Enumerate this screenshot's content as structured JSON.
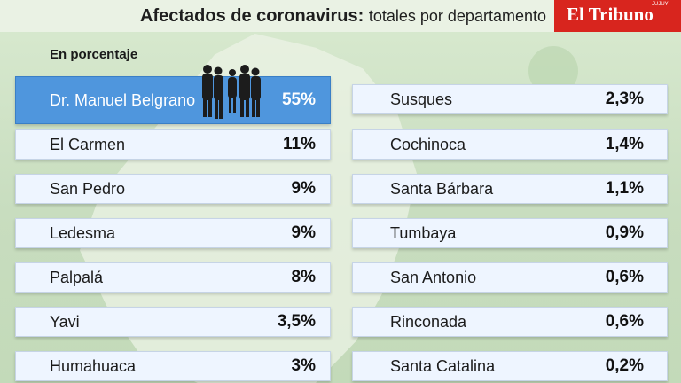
{
  "header": {
    "title_bold": "Afectados de coronavirus:",
    "title_rest": "totales por departamento",
    "logo": "El Tribuno",
    "logo_small": "JUJUY"
  },
  "unit_label": "En porcentaje",
  "colors": {
    "highlight": "#4f96dd",
    "row_bg": "#eef5ff",
    "logo_red": "#d8251e",
    "background": "#cfe3c6"
  },
  "chart_data": {
    "type": "table",
    "title": "Afectados de coronavirus: totales por departamento",
    "unit": "En porcentaje",
    "columns": [
      [
        {
          "name": "Dr. Manuel Belgrano",
          "value": "55%"
        },
        {
          "name": "El Carmen",
          "value": "11%"
        },
        {
          "name": "San Pedro",
          "value": "9%"
        },
        {
          "name": "Ledesma",
          "value": "9%"
        },
        {
          "name": "Palpalá",
          "value": "8%"
        },
        {
          "name": "Yavi",
          "value": "3,5%"
        },
        {
          "name": "Humahuaca",
          "value": "3%"
        }
      ],
      [
        {
          "name": "Susques",
          "value": "2,3%"
        },
        {
          "name": "Cochinoca",
          "value": "1,4%"
        },
        {
          "name": "Santa Bárbara",
          "value": "1,1%"
        },
        {
          "name": "Tumbaya",
          "value": "0,9%"
        },
        {
          "name": "San Antonio",
          "value": "0,6%"
        },
        {
          "name": "Rinconada",
          "value": "0,6%"
        },
        {
          "name": "Santa Catalina",
          "value": "0,2%"
        }
      ]
    ]
  }
}
